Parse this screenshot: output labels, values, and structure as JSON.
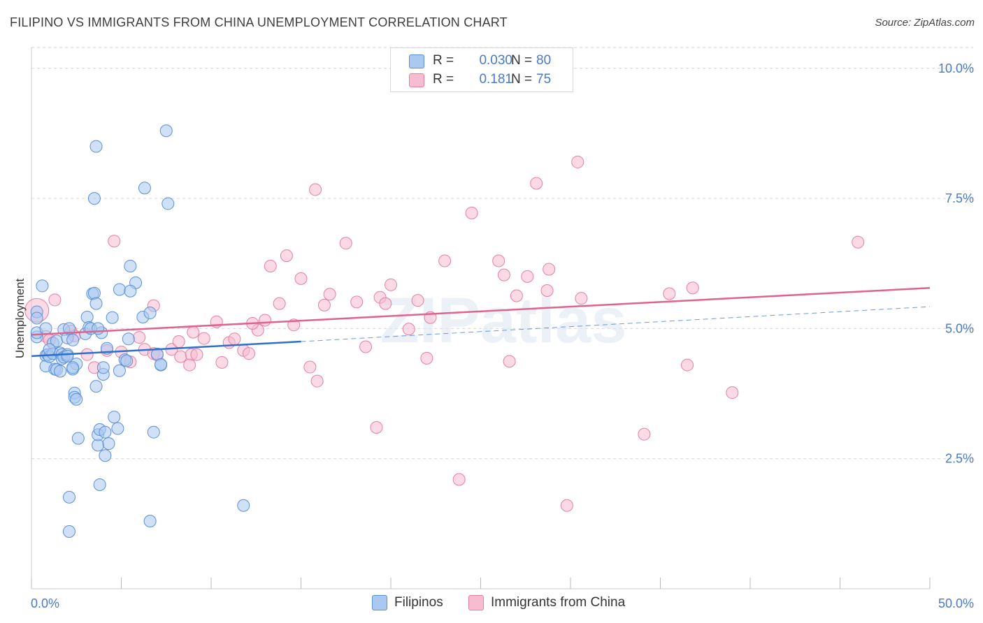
{
  "title": "FILIPINO VS IMMIGRANTS FROM CHINA UNEMPLOYMENT CORRELATION CHART",
  "source": "Source: ZipAtlas.com",
  "watermark": "ZIPatlas",
  "legend": {
    "rows": [
      {
        "r_label": "R =",
        "r_value": "0.030",
        "n_label": "N =",
        "n_value": "80"
      },
      {
        "r_label": "R =",
        "r_value": "0.181",
        "n_label": "N =",
        "n_value": "75"
      }
    ]
  },
  "bottom_legend": [
    "Filipinos",
    "Immigrants from China"
  ],
  "colors": {
    "series_a_fill": "#aac8f0",
    "series_a_stroke": "#5b8fd6",
    "series_a_line": "#2f6fcc",
    "series_b_fill": "#f8bcd0",
    "series_b_stroke": "#e57fa3",
    "series_b_line": "#e0628e",
    "tick_text": "#4a79c8",
    "grid": "#d6d6d6"
  },
  "chart_data": {
    "type": "scatter",
    "title": "FILIPINO VS IMMIGRANTS FROM CHINA UNEMPLOYMENT CORRELATION CHART",
    "xlabel": "",
    "ylabel": "Unemployment",
    "xlim": [
      0,
      50
    ],
    "ylim": [
      0,
      10.4
    ],
    "x_tick_labels": [
      "0.0%",
      "50.0%"
    ],
    "y_ticks": [
      2.5,
      5.0,
      7.5,
      10.0
    ],
    "y_tick_labels": [
      "2.5%",
      "5.0%",
      "7.5%",
      "10.0%"
    ],
    "grid": true,
    "series": [
      {
        "name": "Filipinos",
        "r": 0.03,
        "n": 80,
        "trend": {
          "x": [
            0,
            15
          ],
          "y": [
            4.47,
            4.75
          ],
          "dashed_to": [
            50,
            5.42
          ]
        },
        "points": [
          [
            0.3,
            5.32
          ],
          [
            0.3,
            5.2
          ],
          [
            0.3,
            4.84
          ],
          [
            0.3,
            4.92
          ],
          [
            0.8,
            4.48
          ],
          [
            0.8,
            4.28
          ],
          [
            0.9,
            4.5
          ],
          [
            1.0,
            4.46
          ],
          [
            1.2,
            4.52
          ],
          [
            1.2,
            4.72
          ],
          [
            1.3,
            4.22
          ],
          [
            1.4,
            4.76
          ],
          [
            1.4,
            4.21
          ],
          [
            1.6,
            4.53
          ],
          [
            1.6,
            4.18
          ],
          [
            1.7,
            4.5
          ],
          [
            1.7,
            4.42
          ],
          [
            1.8,
            4.45
          ],
          [
            1.8,
            4.98
          ],
          [
            2.0,
            4.5
          ],
          [
            2.0,
            4.47
          ],
          [
            2.0,
            4.82
          ],
          [
            2.3,
            4.78
          ],
          [
            2.5,
            4.32
          ],
          [
            2.3,
            4.22
          ],
          [
            2.4,
            3.76
          ],
          [
            2.4,
            3.68
          ],
          [
            2.5,
            3.64
          ],
          [
            2.6,
            2.89
          ],
          [
            2.1,
            5.0
          ],
          [
            2.3,
            4.25
          ],
          [
            3.0,
            4.9
          ],
          [
            3.1,
            5.22
          ],
          [
            3.2,
            5.02
          ],
          [
            3.4,
            5.67
          ],
          [
            3.3,
            5.0
          ],
          [
            3.5,
            5.68
          ],
          [
            3.6,
            5.48
          ],
          [
            3.6,
            3.89
          ],
          [
            3.7,
            2.76
          ],
          [
            3.7,
            2.96
          ],
          [
            3.8,
            3.06
          ],
          [
            3.9,
            4.92
          ],
          [
            4.0,
            4.12
          ],
          [
            4.0,
            4.25
          ],
          [
            4.1,
            3.01
          ],
          [
            4.1,
            2.56
          ],
          [
            4.2,
            4.62
          ],
          [
            4.3,
            2.79
          ],
          [
            3.5,
            7.5
          ],
          [
            3.6,
            8.5
          ],
          [
            3.7,
            5.0
          ],
          [
            3.8,
            2.0
          ],
          [
            4.5,
            5.21
          ],
          [
            4.6,
            3.3
          ],
          [
            4.8,
            3.08
          ],
          [
            4.9,
            4.19
          ],
          [
            4.9,
            5.75
          ],
          [
            5.2,
            4.4
          ],
          [
            5.4,
            4.8
          ],
          [
            5.5,
            6.2
          ],
          [
            5.8,
            5.88
          ],
          [
            6.2,
            5.22
          ],
          [
            6.6,
            5.3
          ],
          [
            5.5,
            5.72
          ],
          [
            5.3,
            4.38
          ],
          [
            6.3,
            7.7
          ],
          [
            6.6,
            1.3
          ],
          [
            7.0,
            4.51
          ],
          [
            6.8,
            3.01
          ],
          [
            7.2,
            4.3
          ],
          [
            7.2,
            4.31
          ],
          [
            7.5,
            8.8
          ],
          [
            7.6,
            7.4
          ],
          [
            11.8,
            1.6
          ],
          [
            2.1,
            1.76
          ],
          [
            2.1,
            1.1
          ],
          [
            0.6,
            5.82
          ],
          [
            0.8,
            5.0
          ],
          [
            1.0,
            4.6
          ]
        ]
      },
      {
        "name": "Immigrants from China",
        "r": 0.181,
        "n": 75,
        "trend": {
          "x": [
            0,
            50
          ],
          "y": [
            4.88,
            5.78
          ]
        },
        "points": [
          [
            0.3,
            5.35
          ],
          [
            0.8,
            4.85
          ],
          [
            1.0,
            4.78
          ],
          [
            2.2,
            4.95
          ],
          [
            1.3,
            5.55
          ],
          [
            2.4,
            4.86
          ],
          [
            3.1,
            4.5
          ],
          [
            3.5,
            4.25
          ],
          [
            4.2,
            4.58
          ],
          [
            5.0,
            4.55
          ],
          [
            5.5,
            4.36
          ],
          [
            6.0,
            4.83
          ],
          [
            6.3,
            4.6
          ],
          [
            6.8,
            4.52
          ],
          [
            7.0,
            4.49
          ],
          [
            4.6,
            6.68
          ],
          [
            6.8,
            5.44
          ],
          [
            7.8,
            4.6
          ],
          [
            8.3,
            4.46
          ],
          [
            8.9,
            4.5
          ],
          [
            8.8,
            4.3
          ],
          [
            9.2,
            4.5
          ],
          [
            9.6,
            4.81
          ],
          [
            10.3,
            5.13
          ],
          [
            10.6,
            4.35
          ],
          [
            11.0,
            4.73
          ],
          [
            11.3,
            4.8
          ],
          [
            11.8,
            4.58
          ],
          [
            12.1,
            4.52
          ],
          [
            12.6,
            4.97
          ],
          [
            13.0,
            5.16
          ],
          [
            13.3,
            6.2
          ],
          [
            13.8,
            5.48
          ],
          [
            14.2,
            6.4
          ],
          [
            14.6,
            5.07
          ],
          [
            15.0,
            5.96
          ],
          [
            15.5,
            4.26
          ],
          [
            15.9,
            3.99
          ],
          [
            15.8,
            7.67
          ],
          [
            16.3,
            5.45
          ],
          [
            16.6,
            5.66
          ],
          [
            17.5,
            6.64
          ],
          [
            18.1,
            5.51
          ],
          [
            18.6,
            4.65
          ],
          [
            19.2,
            3.1
          ],
          [
            19.4,
            5.6
          ],
          [
            19.7,
            5.48
          ],
          [
            20.0,
            5.84
          ],
          [
            21.0,
            4.99
          ],
          [
            21.5,
            5.54
          ],
          [
            22.0,
            4.43
          ],
          [
            22.2,
            5.21
          ],
          [
            23.0,
            6.3
          ],
          [
            23.8,
            2.1
          ],
          [
            24.5,
            7.22
          ],
          [
            26.0,
            6.3
          ],
          [
            26.3,
            6.03
          ],
          [
            26.6,
            4.37
          ],
          [
            27.0,
            5.63
          ],
          [
            27.6,
            6.0
          ],
          [
            28.1,
            7.79
          ],
          [
            28.7,
            5.73
          ],
          [
            28.8,
            6.14
          ],
          [
            29.8,
            1.6
          ],
          [
            30.4,
            8.2
          ],
          [
            30.6,
            5.58
          ],
          [
            34.1,
            2.97
          ],
          [
            35.5,
            5.67
          ],
          [
            36.5,
            4.3
          ],
          [
            36.8,
            5.78
          ],
          [
            39.0,
            3.77
          ],
          [
            46.0,
            6.66
          ],
          [
            8.2,
            4.75
          ],
          [
            9.0,
            4.93
          ],
          [
            12.3,
            5.1
          ]
        ]
      }
    ]
  }
}
